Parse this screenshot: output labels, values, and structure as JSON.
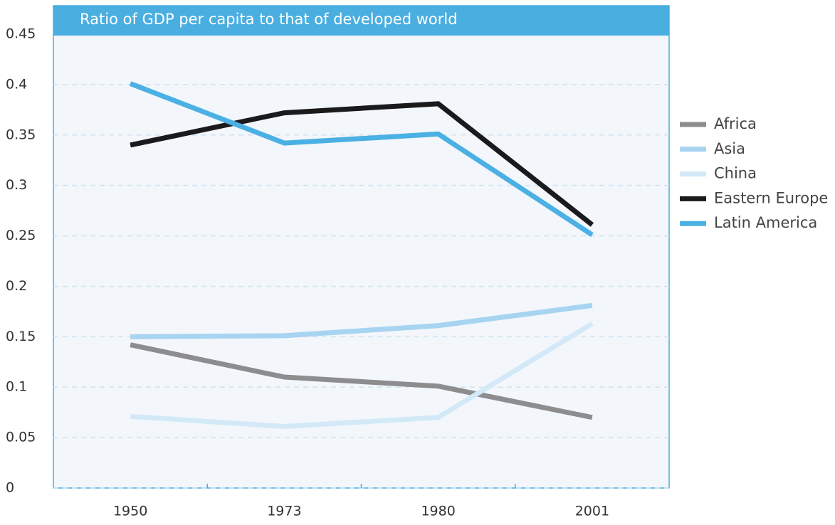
{
  "chart_data": {
    "type": "line",
    "title": "Ratio of GDP per capita to that of developed world",
    "categories": [
      "1950",
      "1973",
      "1980",
      "2001"
    ],
    "ylim": [
      0,
      0.45
    ],
    "yticks": [
      0,
      0.05,
      0.1,
      0.15,
      0.2,
      0.25,
      0.3,
      0.35,
      0.4,
      0.45
    ],
    "grid": true,
    "legend": "right",
    "series": [
      {
        "name": "Africa",
        "color": "#8d8d90",
        "values": [
          0.142,
          0.11,
          0.101,
          0.07
        ]
      },
      {
        "name": "Asia",
        "color": "#a7d4f0",
        "values": [
          0.15,
          0.151,
          0.161,
          0.181
        ]
      },
      {
        "name": "China",
        "color": "#d3e9f8",
        "values": [
          0.071,
          0.061,
          0.07,
          0.163
        ]
      },
      {
        "name": "Eastern Europe",
        "color": "#1a1a1c",
        "values": [
          0.34,
          0.372,
          0.381,
          0.261
        ]
      },
      {
        "name": "Latin America",
        "color": "#4bb0e3",
        "values": [
          0.401,
          0.342,
          0.351,
          0.251
        ]
      }
    ]
  }
}
